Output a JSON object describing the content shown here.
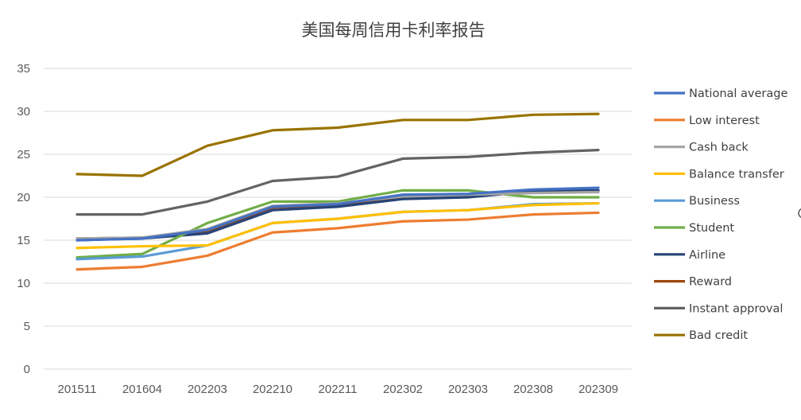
{
  "chart_data": {
    "type": "line",
    "title": "美国每周信用卡利率报告",
    "xlabel": "",
    "ylabel": "",
    "categories": [
      "201511",
      "201604",
      "202203",
      "202210",
      "202211",
      "202302",
      "202303",
      "202308",
      "202309"
    ],
    "ylim": [
      0,
      35
    ],
    "yticks": [
      0,
      5,
      10,
      15,
      20,
      25,
      30,
      35
    ],
    "grid": true,
    "legend_position": "right",
    "series": [
      {
        "name": "National average",
        "color": "#4472C4",
        "values": [
          15.0,
          15.2,
          16.2,
          18.9,
          19.2,
          20.3,
          20.4,
          20.9,
          21.1
        ]
      },
      {
        "name": "Low interest",
        "color": "#ED7D31",
        "values": [
          11.6,
          11.9,
          13.2,
          15.9,
          16.4,
          17.2,
          17.4,
          18.0,
          18.2
        ]
      },
      {
        "name": "Cash back",
        "color": "#A5A5A5",
        "values": [
          15.2,
          15.3,
          16.3,
          19.0,
          19.3,
          20.1,
          20.3,
          20.5,
          20.6
        ]
      },
      {
        "name": "Balance transfer",
        "color": "#FFC000",
        "values": [
          14.1,
          14.3,
          14.4,
          17.0,
          17.5,
          18.3,
          18.5,
          19.1,
          19.3
        ]
      },
      {
        "name": "Business",
        "color": "#5B9BD5",
        "values": [
          12.8,
          13.1,
          14.4,
          17.0,
          17.5,
          18.3,
          18.5,
          19.2,
          19.3
        ]
      },
      {
        "name": "Student",
        "color": "#70AD47",
        "values": [
          13.0,
          13.4,
          17.0,
          19.5,
          19.5,
          20.8,
          20.8,
          20.0,
          20.0
        ]
      },
      {
        "name": "Airline",
        "color": "#264478",
        "values": [
          15.0,
          15.2,
          15.8,
          18.5,
          18.9,
          19.8,
          20.0,
          20.7,
          20.8
        ]
      },
      {
        "name": "Reward",
        "color": "#9E480E",
        "values": [
          15.2,
          15.3,
          16.0,
          18.8,
          19.1,
          20.0,
          20.2,
          20.6,
          20.7
        ]
      },
      {
        "name": "Instant approval",
        "color": "#636363",
        "values": [
          18.0,
          18.0,
          19.5,
          21.9,
          22.4,
          24.5,
          24.7,
          25.2,
          25.5
        ]
      },
      {
        "name": "Bad credit",
        "color": "#997300",
        "values": [
          22.7,
          22.5,
          26.0,
          27.8,
          28.1,
          29.0,
          29.0,
          29.6,
          29.7
        ]
      }
    ]
  }
}
